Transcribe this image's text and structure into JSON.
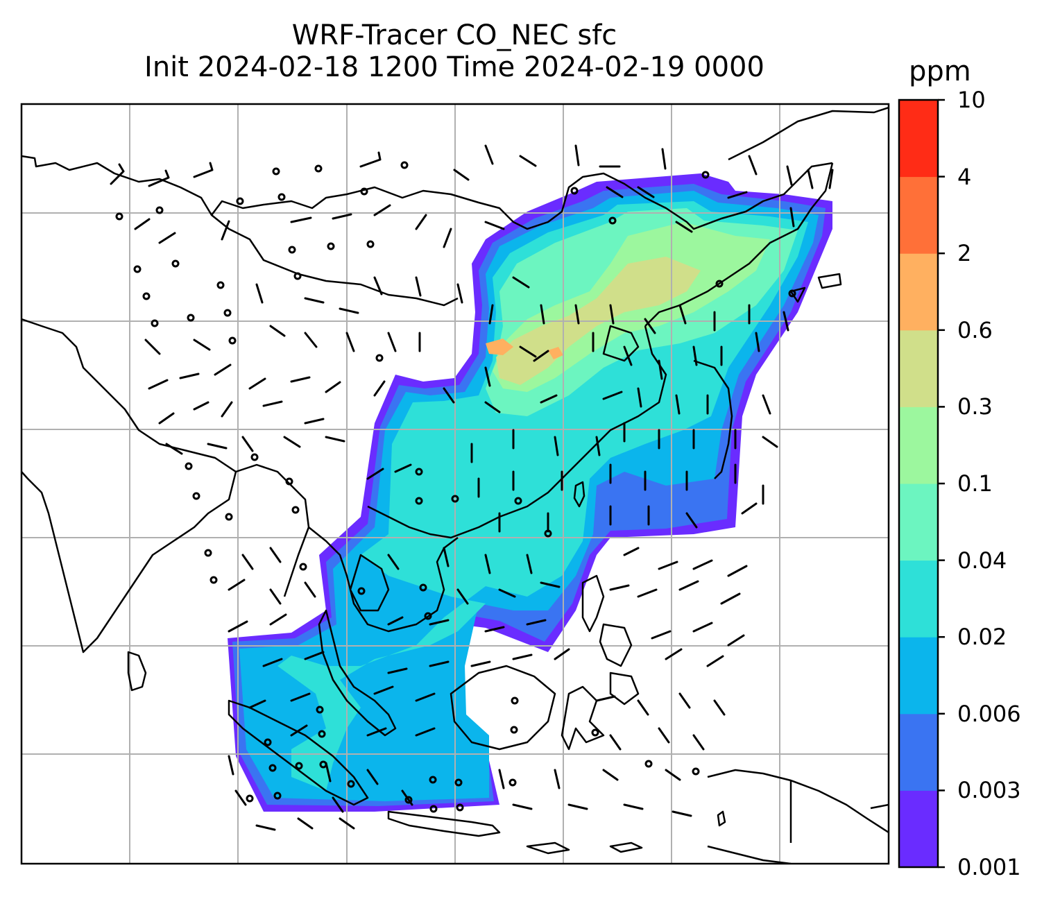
{
  "title": {
    "line1": "WRF-Tracer CO_NEC sfc",
    "line2": "Init 2024-02-18 1200 Time 2024-02-19 0000"
  },
  "colorbar": {
    "unit": "ppm",
    "levels": [
      "0.001",
      "0.003",
      "0.006",
      "0.02",
      "0.04",
      "0.1",
      "0.3",
      "0.6",
      "2",
      "4",
      "10"
    ],
    "colors": [
      "#6a2cff",
      "#3a74f2",
      "#0bb5ec",
      "#2ee0d8",
      "#6cf5c0",
      "#9cf79e",
      "#d0df8a",
      "#ffb060",
      "#ff7038",
      "#ff2c16"
    ]
  },
  "map": {
    "type": "filled-contour concentration map with wind barbs",
    "coastline_color": "#000000",
    "gridline_color": "#b0b0b0",
    "wind_barbs": true
  }
}
